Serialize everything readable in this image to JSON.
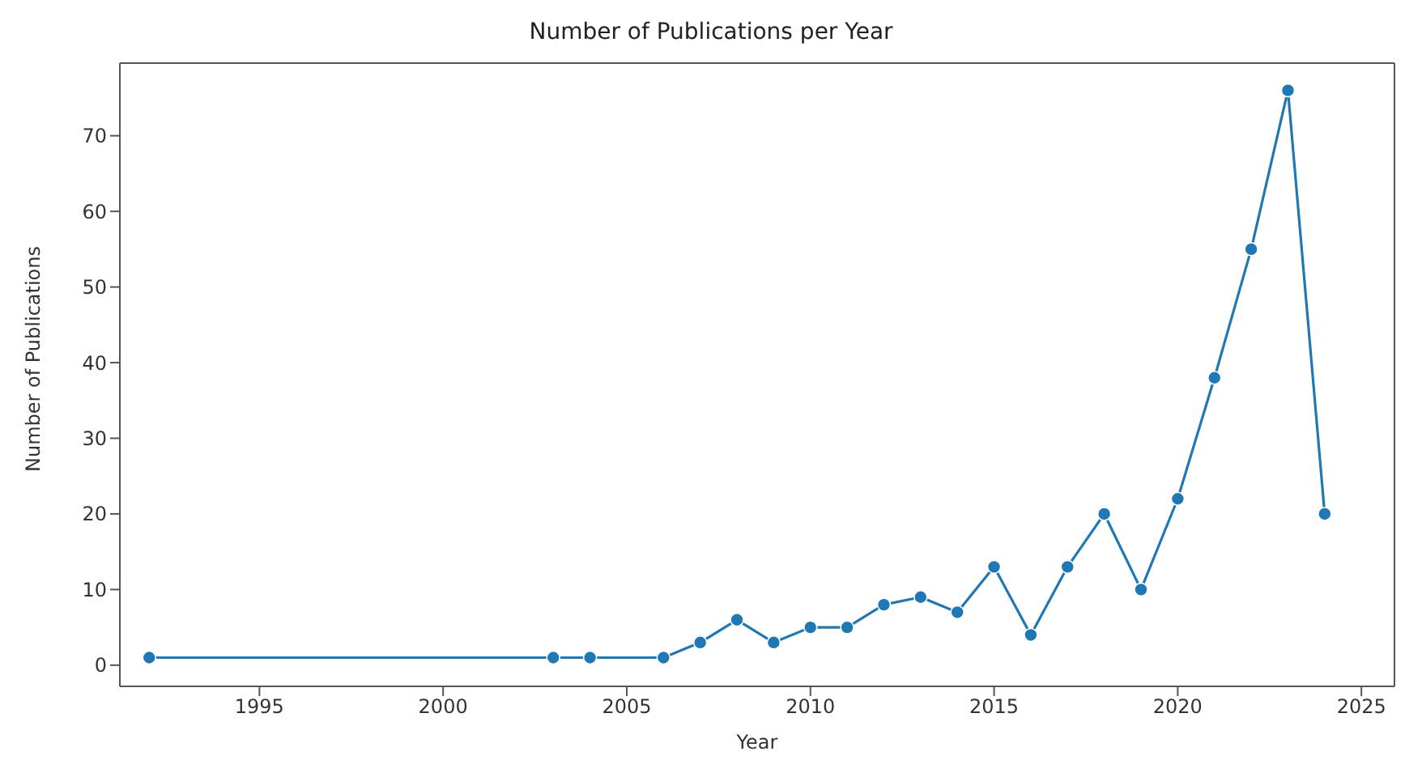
{
  "chart_data": {
    "type": "line",
    "title": "Number of Publications per Year",
    "xlabel": "Year",
    "ylabel": "Number of Publications",
    "x": [
      1992,
      2003,
      2004,
      2006,
      2007,
      2008,
      2009,
      2010,
      2011,
      2012,
      2013,
      2014,
      2015,
      2016,
      2017,
      2018,
      2019,
      2020,
      2021,
      2022,
      2023,
      2024
    ],
    "series": [
      {
        "color": "#1f77b4",
        "values": [
          1,
          1,
          1,
          1,
          3,
          6,
          3,
          5,
          5,
          8,
          9,
          7,
          13,
          4,
          13,
          20,
          10,
          22,
          38,
          55,
          76,
          20
        ]
      }
    ],
    "xlim": [
      1991.2,
      2025.9
    ],
    "xticks": [
      1995,
      2000,
      2005,
      2010,
      2015,
      2020,
      2025
    ],
    "ylim": [
      -2.8,
      79.6
    ],
    "yticks": [
      0,
      10,
      20,
      30,
      40,
      50,
      60,
      70
    ],
    "grid": false,
    "legend": false,
    "marker": "circle",
    "line_style": "solid"
  }
}
